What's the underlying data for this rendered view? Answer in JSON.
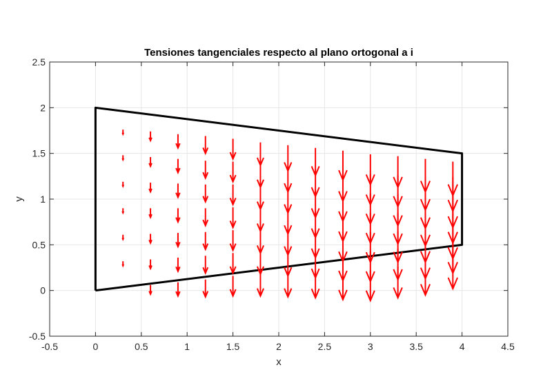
{
  "chart_data": {
    "type": "quiver",
    "title": "Tensiones tangenciales respecto al plano ortogonal a i",
    "xlabel": "x",
    "ylabel": "y",
    "xlim": [
      -0.5,
      4.5
    ],
    "ylim": [
      -0.5,
      2.5
    ],
    "xticks": [
      -0.5,
      0,
      0.5,
      1,
      1.5,
      2,
      2.5,
      3,
      3.5,
      4,
      4.5
    ],
    "yticks": [
      -0.5,
      0,
      0.5,
      1,
      1.5,
      2,
      2.5
    ],
    "xtick_labels": [
      "-0.5",
      "0",
      "0.5",
      "1",
      "1.5",
      "2",
      "2.5",
      "3",
      "3.5",
      "4",
      "4.5"
    ],
    "ytick_labels": [
      "-0.5",
      "0",
      "0.5",
      "1",
      "1.5",
      "2",
      "2.5"
    ],
    "grid": true,
    "outline": {
      "color": "#000000",
      "vertices": [
        [
          0,
          0
        ],
        [
          0,
          2
        ],
        [
          4,
          1.5
        ],
        [
          4,
          0.5
        ],
        [
          0,
          0
        ]
      ]
    },
    "arrow_color": "#ff0000",
    "arrow_columns": [
      {
        "x": 0.3,
        "starts": [
          1.76,
          1.48,
          1.19,
          0.9,
          0.61,
          0.32
        ],
        "length": 0.05
      },
      {
        "x": 0.6,
        "starts": [
          1.74,
          1.46,
          1.18,
          0.9,
          0.62,
          0.34,
          0.06
        ],
        "length": 0.1
      },
      {
        "x": 0.9,
        "starts": [
          1.71,
          1.44,
          1.17,
          0.9,
          0.63,
          0.36,
          0.09
        ],
        "length": 0.15
      },
      {
        "x": 1.2,
        "starts": [
          1.69,
          1.42,
          1.16,
          0.9,
          0.64,
          0.38,
          0.12
        ],
        "length": 0.19
      },
      {
        "x": 1.5,
        "starts": [
          1.66,
          1.41,
          1.16,
          0.91,
          0.66,
          0.41,
          0.16
        ],
        "length": 0.22
      },
      {
        "x": 1.8,
        "starts": [
          1.62,
          1.38,
          1.14,
          0.9,
          0.66,
          0.43,
          0.19
        ],
        "length": 0.25
      },
      {
        "x": 2.1,
        "starts": [
          1.59,
          1.36,
          1.13,
          0.9,
          0.67,
          0.44,
          0.21
        ],
        "length": 0.28
      },
      {
        "x": 2.4,
        "starts": [
          1.56,
          1.33,
          1.1,
          0.88,
          0.66,
          0.44,
          0.22
        ],
        "length": 0.3
      },
      {
        "x": 2.7,
        "starts": [
          1.53,
          1.3,
          1.08,
          0.86,
          0.64,
          0.43,
          0.22
        ],
        "length": 0.32
      },
      {
        "x": 3.0,
        "starts": [
          1.49,
          1.27,
          1.06,
          0.85,
          0.64,
          0.43,
          0.22
        ],
        "length": 0.33
      },
      {
        "x": 3.3,
        "starts": [
          1.47,
          1.26,
          1.05,
          0.85,
          0.65,
          0.46,
          0.26
        ],
        "length": 0.34
      },
      {
        "x": 3.6,
        "starts": [
          1.44,
          1.24,
          1.04,
          0.85,
          0.67,
          0.49,
          0.31
        ],
        "length": 0.36
      },
      {
        "x": 3.9,
        "starts": [
          1.41,
          1.24,
          1.06,
          0.89,
          0.72,
          0.56,
          0.39
        ],
        "length": 0.37
      }
    ]
  }
}
